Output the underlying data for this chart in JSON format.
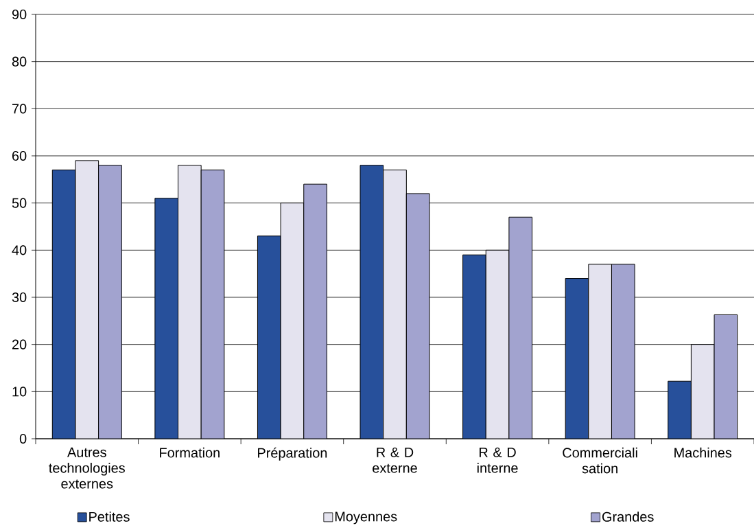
{
  "chart_data": {
    "type": "bar",
    "categories": [
      "Autres technologies externes",
      "Formation",
      "Préparation",
      "R & D externe",
      "R & D interne",
      "Commerciali sation",
      "Machines"
    ],
    "series": [
      {
        "name": "Petites",
        "color": "#27509b",
        "values": [
          57,
          51,
          43,
          58,
          39,
          34,
          12.2
        ]
      },
      {
        "name": "Moyennes",
        "color": "#e4e3ef",
        "values": [
          59,
          58,
          50,
          57,
          40,
          37,
          20
        ]
      },
      {
        "name": "Grandes",
        "color": "#a2a3cf",
        "values": [
          58,
          57,
          54,
          52,
          47,
          37,
          26.3
        ]
      }
    ],
    "ylim": [
      0,
      90
    ],
    "yticks": [
      0,
      10,
      20,
      30,
      40,
      50,
      60,
      70,
      80,
      90
    ],
    "grid": "y",
    "legend": "bottom"
  }
}
